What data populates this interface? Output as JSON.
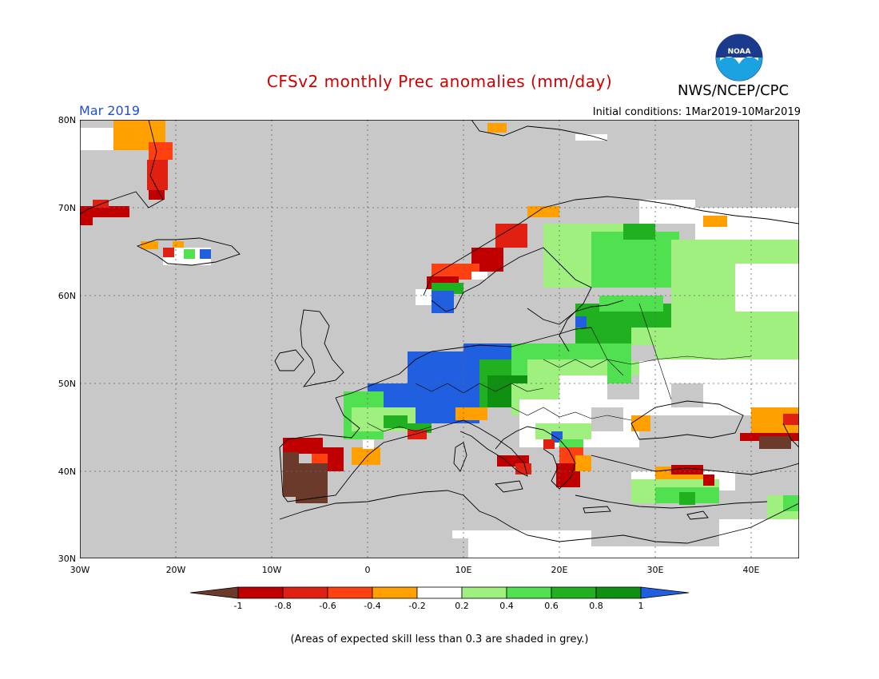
{
  "header": {
    "title": "CFSv2 monthly Prec anomalies (mm/day)",
    "org": "NWS/NCEP/CPC",
    "month": "Mar 2019",
    "initial_conditions": "Initial conditions: 1Mar2019-10Mar2019",
    "logo_text": "NOAA"
  },
  "map": {
    "lat_labels": [
      "80N",
      "70N",
      "60N",
      "50N",
      "40N",
      "30N"
    ],
    "lat_values": [
      80,
      70,
      60,
      50,
      40,
      30
    ],
    "lon_labels": [
      "30W",
      "20W",
      "10W",
      "0",
      "10E",
      "20E",
      "30E",
      "40E"
    ],
    "lon_values": [
      -30,
      -20,
      -10,
      0,
      10,
      20,
      30,
      40
    ],
    "extent": {
      "lon": [
        -30,
        45
      ],
      "lat": [
        30,
        80
      ]
    },
    "grey_meaning": "low skill"
  },
  "colorbar": {
    "labels": [
      "-1",
      "-0.8",
      "-0.6",
      "-0.4",
      "-0.2",
      "0.2",
      "0.4",
      "0.6",
      "0.8",
      "1"
    ],
    "colors": [
      "#6b3a2a",
      "#c00000",
      "#e02010",
      "#ff4010",
      "#ffa000",
      "#ffffff",
      "#a0f080",
      "#50e050",
      "#20b020",
      "#109010",
      "#2060e0"
    ]
  },
  "footnote": "(Areas of expected skill less than 0.3 are shaded in grey.)"
}
